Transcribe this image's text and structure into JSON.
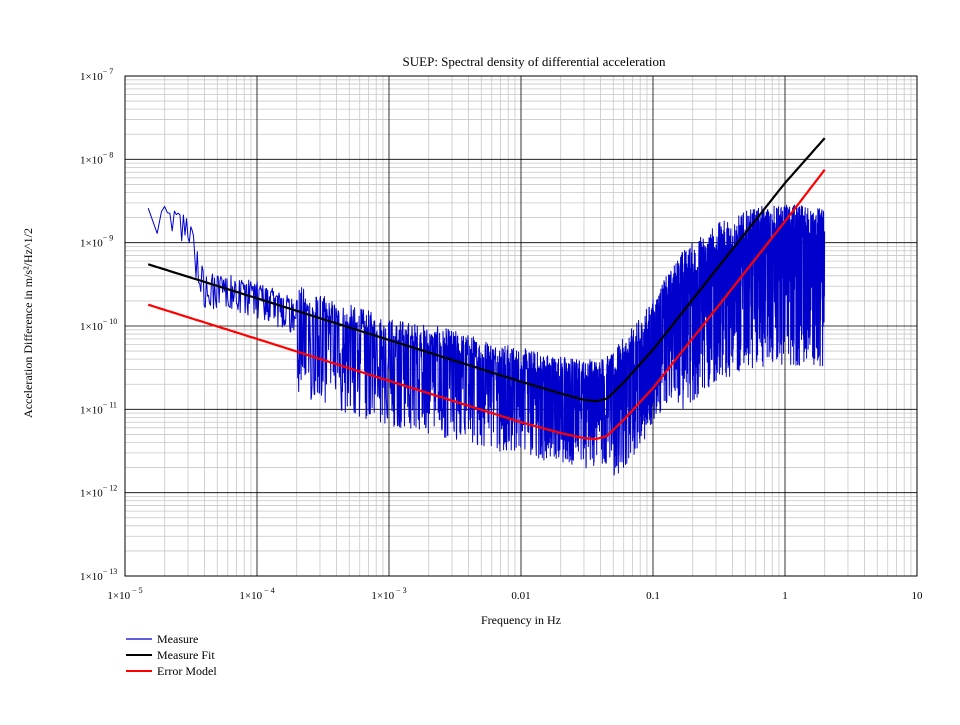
{
  "chart_data": {
    "type": "line",
    "title": "SUEP: Spectral density of differential acceleration",
    "xlabel": "Frequency in Hz",
    "ylabel": "Acceleration Difference in m/s²/Hz^1/2",
    "xscale": "log",
    "yscale": "log",
    "xlim": [
      1e-05,
      10
    ],
    "ylim": [
      1e-13,
      1e-07
    ],
    "grid": true,
    "x_ticks": [
      {
        "value": 1e-05,
        "base": "1×10",
        "exp": "− 5"
      },
      {
        "value": 0.0001,
        "base": "1×10",
        "exp": "− 4"
      },
      {
        "value": 0.001,
        "base": "1×10",
        "exp": "− 3"
      },
      {
        "value": 0.01,
        "base": "0.01",
        "exp": ""
      },
      {
        "value": 0.1,
        "base": "0.1",
        "exp": ""
      },
      {
        "value": 1,
        "base": "1",
        "exp": ""
      },
      {
        "value": 10,
        "base": "10",
        "exp": ""
      }
    ],
    "y_ticks": [
      {
        "value": 1e-07,
        "base": "1×10",
        "exp": "− 7"
      },
      {
        "value": 1e-08,
        "base": "1×10",
        "exp": "− 8"
      },
      {
        "value": 1e-09,
        "base": "1×10",
        "exp": "− 9"
      },
      {
        "value": 1e-10,
        "base": "1×10",
        "exp": "− 10"
      },
      {
        "value": 1e-11,
        "base": "1×10",
        "exp": "− 11"
      },
      {
        "value": 1e-12,
        "base": "1×10",
        "exp": "− 12"
      },
      {
        "value": 1e-13,
        "base": "1×10",
        "exp": "− 13"
      }
    ],
    "series": [
      {
        "name": "Measure",
        "color": "#0000cc",
        "kind": "noisy",
        "x_range": [
          1.5e-05,
          2
        ],
        "envelope_x": [
          1.5e-05,
          3e-05,
          4e-05,
          6e-05,
          0.0001,
          0.0003,
          0.001,
          0.003,
          0.01,
          0.03,
          0.05,
          0.08,
          0.15,
          0.3,
          0.6,
          1,
          2
        ],
        "envelope_y": [
          2.5e-09,
          1.9e-09,
          3.5e-10,
          3.5e-10,
          2.8e-10,
          1.3e-10,
          7e-11,
          5e-11,
          3e-11,
          2.2e-11,
          2.5e-11,
          6e-11,
          3e-10,
          7e-10,
          1.1e-09,
          1.2e-09,
          1.1e-09
        ]
      },
      {
        "name": "Measure Fit",
        "color": "#000000",
        "kind": "curve",
        "x": [
          1.5e-05,
          0.0001,
          0.001,
          0.01,
          0.02,
          0.03,
          0.037,
          0.045,
          0.06,
          0.1,
          0.3,
          1,
          2
        ],
        "y": [
          5.5e-10,
          2.15e-10,
          6.8e-11,
          2.15e-11,
          1.55e-11,
          1.3e-11,
          1.25e-11,
          1.35e-11,
          2.1e-11,
          5.2e-11,
          4.7e-10,
          5.2e-09,
          1.8e-08
        ]
      },
      {
        "name": "Error Model",
        "color": "#ff0000",
        "kind": "curve",
        "x": [
          1.5e-05,
          0.0001,
          0.001,
          0.01,
          0.02,
          0.03,
          0.037,
          0.045,
          0.06,
          0.1,
          0.3,
          1,
          2
        ],
        "y": [
          1.8e-10,
          7e-11,
          2.2e-11,
          7e-12,
          5.2e-12,
          4.5e-12,
          4.4e-12,
          4.8e-12,
          7.5e-12,
          1.8e-11,
          1.6e-10,
          1.8e-09,
          7.5e-09
        ]
      }
    ],
    "legend_position": "bottom-left"
  }
}
